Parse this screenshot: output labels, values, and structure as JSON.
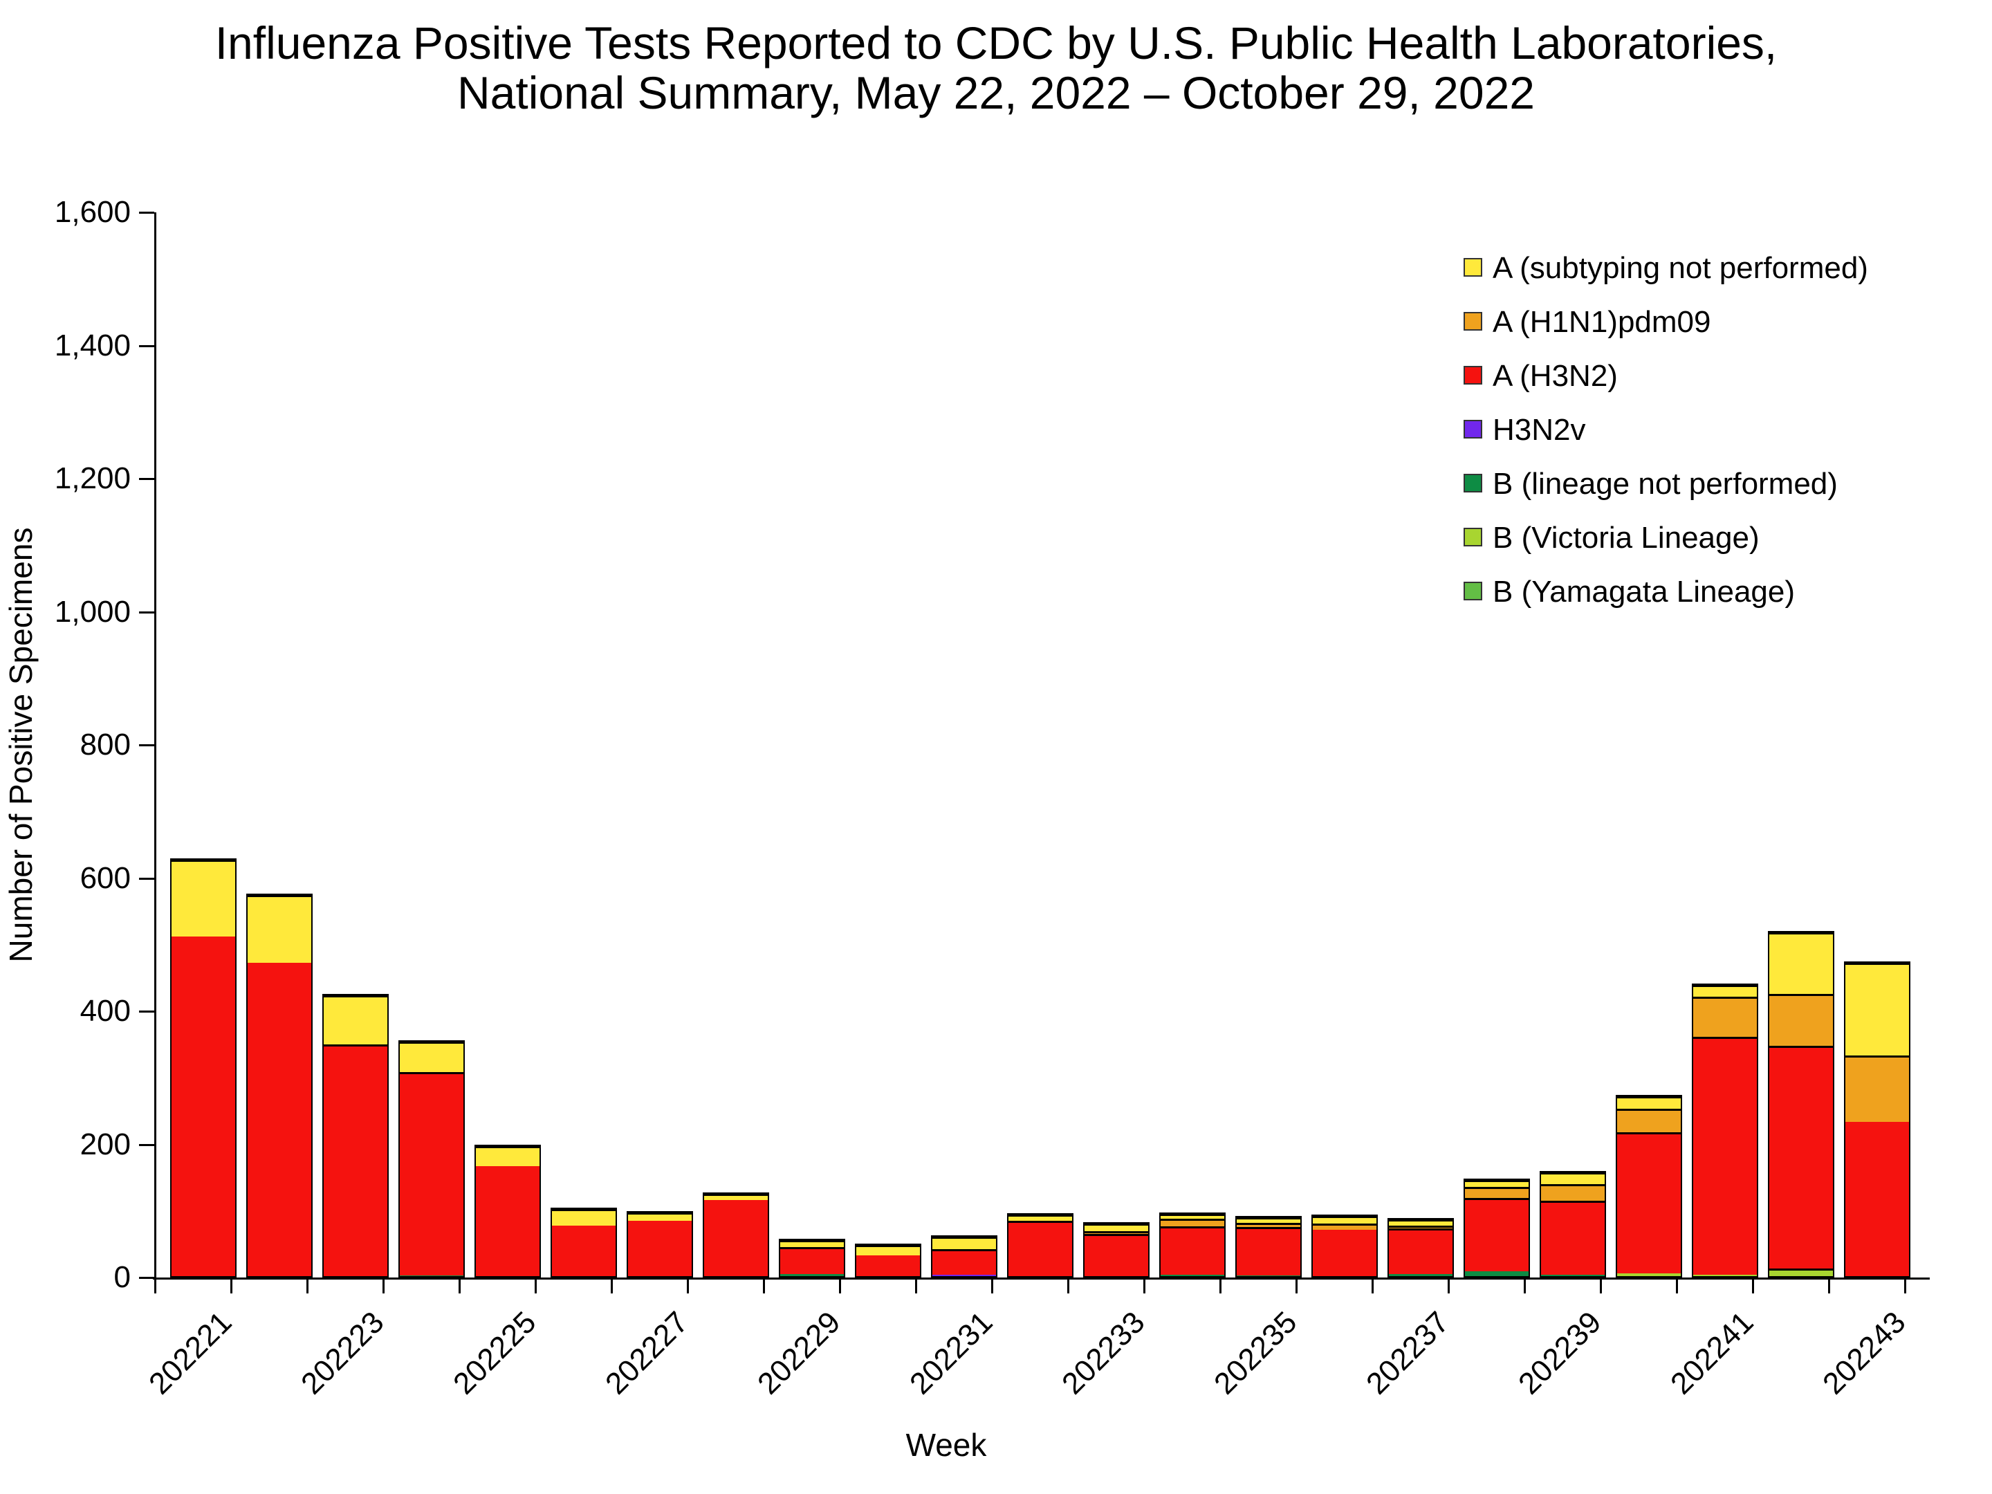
{
  "title": {
    "line1": "Influenza Positive Tests Reported to CDC by U.S. Public Health Laboratories,",
    "line2": "National Summary, May 22, 2022 – October 29, 2022"
  },
  "y_axis": {
    "title": "Number of Positive Specimens",
    "tick_labels": [
      "0",
      "200",
      "400",
      "600",
      "800",
      "1,000",
      "1,200",
      "1,400",
      "1,600"
    ],
    "min": 0,
    "max": 1600,
    "step": 200
  },
  "x_axis": {
    "title": "Week",
    "labeled_ticks": [
      "202221",
      "202223",
      "202225",
      "202227",
      "202229",
      "202231",
      "202233",
      "202235",
      "202237",
      "202239",
      "202241",
      "202243"
    ]
  },
  "legend": {
    "items": [
      {
        "key": "a_unsub",
        "label": "A (subtyping not performed)",
        "color": "#FFE93B"
      },
      {
        "key": "h1n1",
        "label": "A (H1N1)pdm09",
        "color": "#EFA21E"
      },
      {
        "key": "h3n2",
        "label": "A (H3N2)",
        "color": "#F5120F"
      },
      {
        "key": "h3n2v",
        "label": "H3N2v",
        "color": "#7127EC"
      },
      {
        "key": "b_np",
        "label": "B (lineage not performed)",
        "color": "#0E8C44"
      },
      {
        "key": "b_victoria",
        "label": "B (Victoria Lineage)",
        "color": "#A8D530"
      },
      {
        "key": "b_yamagata",
        "label": "B (Yamagata Lineage)",
        "color": "#63BE45"
      }
    ]
  },
  "chart_data": {
    "type": "bar",
    "stacked": true,
    "grid": false,
    "legend_position": "upper right",
    "xlabel": "Week",
    "ylabel": "Number of Positive Specimens",
    "ylim": [
      0,
      1600
    ],
    "categories": [
      202221,
      202222,
      202223,
      202224,
      202225,
      202226,
      202227,
      202228,
      202229,
      202230,
      202231,
      202232,
      202233,
      202234,
      202235,
      202236,
      202237,
      202238,
      202239,
      202240,
      202241,
      202242,
      202243
    ],
    "series": [
      {
        "name": "B (Yamagata Lineage)",
        "key": "b_yamagata",
        "color": "#63BE45",
        "values": [
          0,
          0,
          0,
          0,
          0,
          0,
          0,
          0,
          0,
          0,
          0,
          0,
          0,
          0,
          0,
          0,
          0,
          0,
          0,
          0,
          0,
          0,
          0
        ]
      },
      {
        "name": "B (Victoria Lineage)",
        "key": "b_victoria",
        "color": "#A8D530",
        "values": [
          0,
          0,
          0,
          0,
          0,
          0,
          0,
          0,
          0,
          0,
          0,
          0,
          0,
          0,
          0,
          0,
          0,
          0,
          0,
          6,
          4,
          11,
          0
        ]
      },
      {
        "name": "B (lineage not performed)",
        "key": "b_np",
        "color": "#0E8C44",
        "values": [
          0,
          0,
          2,
          3,
          0,
          0,
          0,
          0,
          5,
          0,
          0,
          2,
          2,
          4,
          3,
          0,
          5,
          9,
          4,
          0,
          0,
          2,
          0
        ]
      },
      {
        "name": "H3N2v",
        "key": "h3n2v",
        "color": "#7127EC",
        "values": [
          0,
          0,
          0,
          0,
          0,
          0,
          0,
          0,
          0,
          0,
          4,
          0,
          0,
          0,
          0,
          0,
          0,
          0,
          0,
          0,
          0,
          0,
          0
        ]
      },
      {
        "name": "A (H3N2)",
        "key": "h3n2",
        "color": "#F5120F",
        "values": [
          512,
          473,
          348,
          306,
          167,
          78,
          85,
          116,
          41,
          33,
          39,
          83,
          63,
          73,
          73,
          72,
          69,
          110,
          111,
          212,
          358,
          335,
          234
        ]
      },
      {
        "name": "A (H1N1)pdm09",
        "key": "h1n1",
        "color": "#EFA21E",
        "values": [
          0,
          0,
          0,
          0,
          0,
          0,
          0,
          0,
          0,
          0,
          0,
          0,
          5,
          11,
          6,
          9,
          4,
          17,
          25,
          36,
          60,
          78,
          100
        ]
      },
      {
        "name": "A (subtyping not performed)",
        "key": "a_unsub",
        "color": "#FFE93B",
        "values": [
          116,
          102,
          74,
          45,
          30,
          25,
          13,
          10,
          10,
          16,
          18,
          10,
          11,
          8,
          8,
          11,
          9,
          11,
          18,
          18,
          18,
          92,
          139
        ]
      }
    ],
    "totals": [
      628,
      575,
      424,
      354,
      197,
      103,
      98,
      126,
      56,
      49,
      61,
      95,
      81,
      96,
      90,
      92,
      87,
      147,
      158,
      272,
      440,
      518,
      473
    ]
  }
}
